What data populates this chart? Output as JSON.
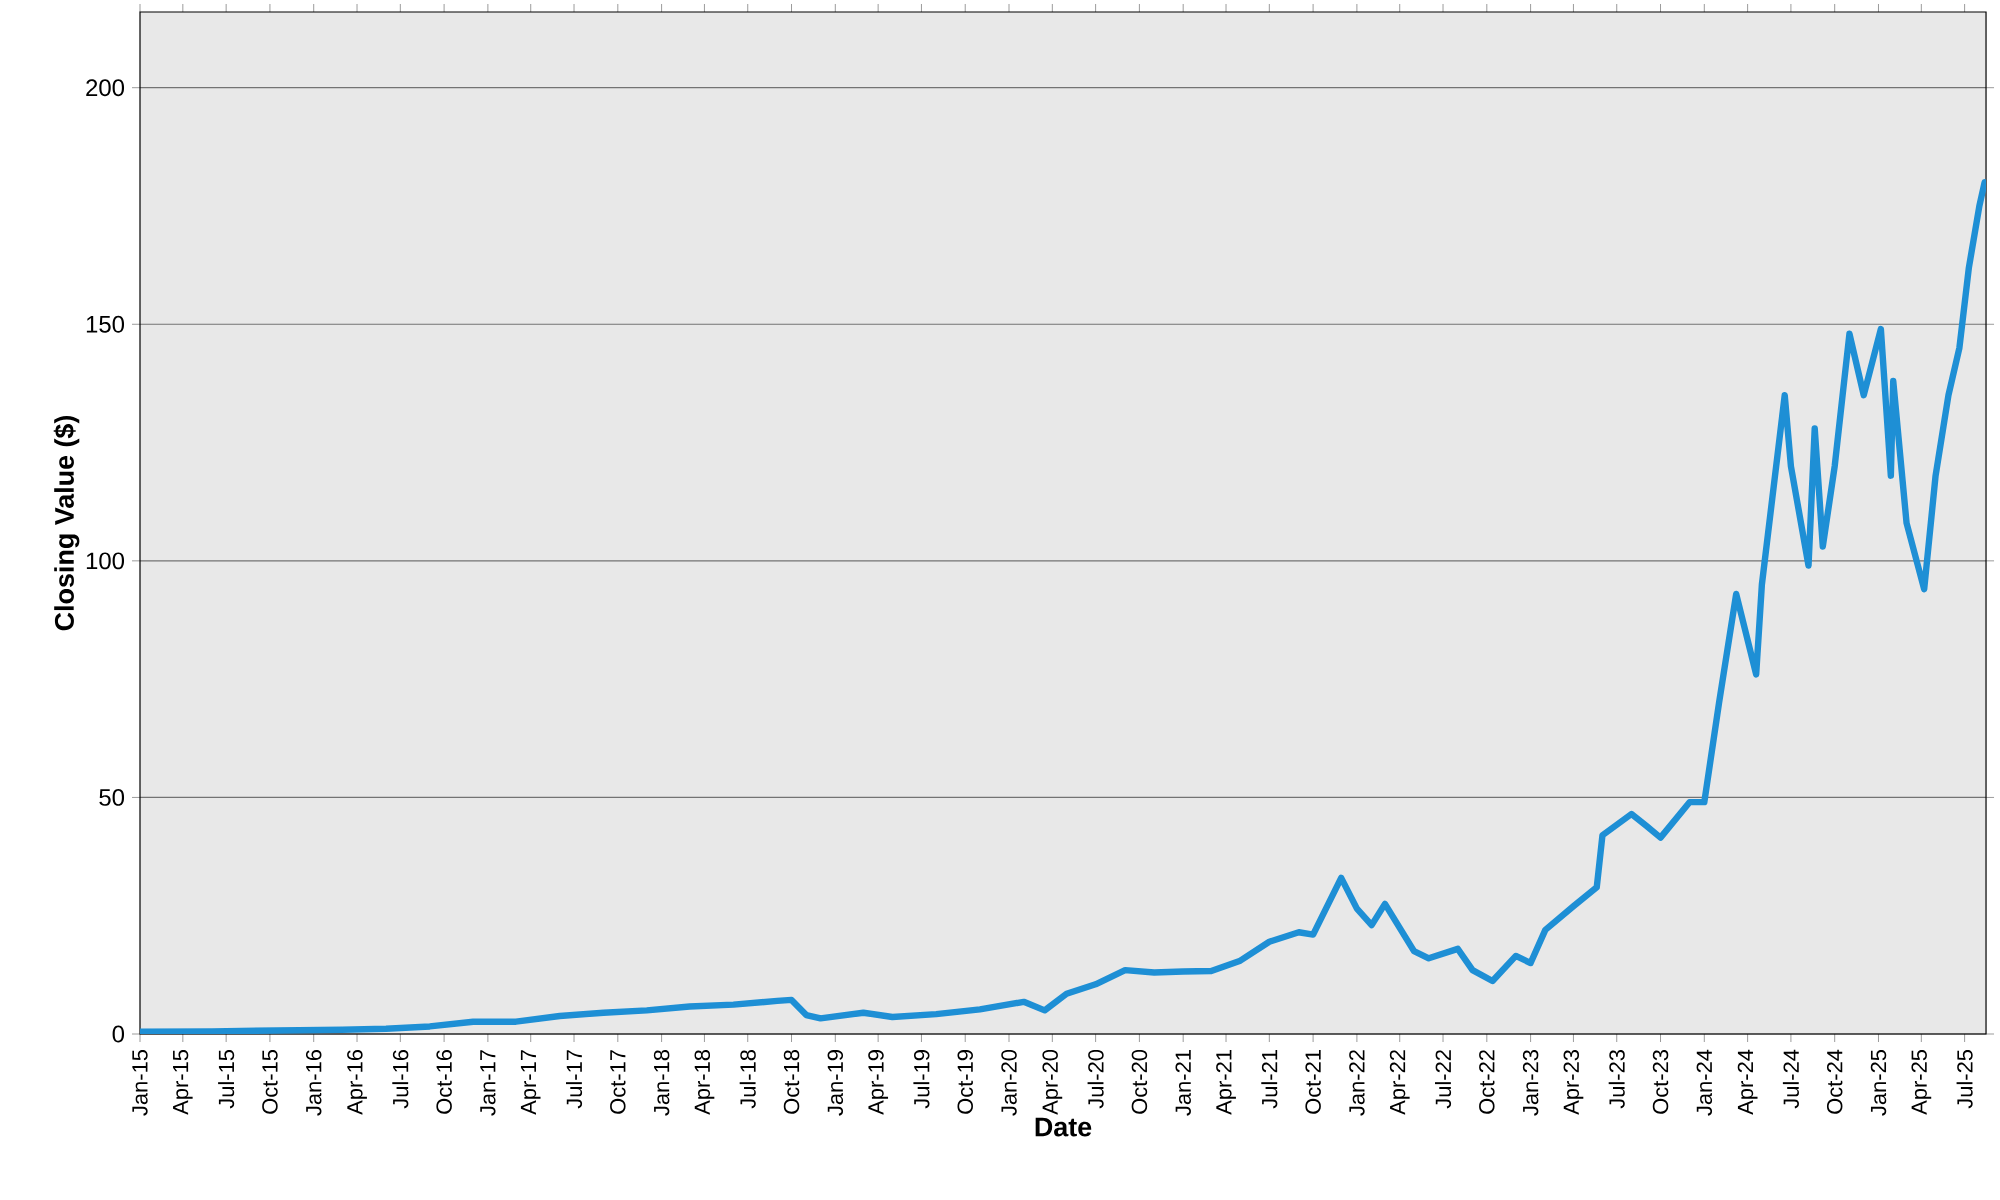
{
  "chart_data": {
    "type": "line",
    "xlabel": "Date",
    "ylabel": "Closing Value ($)",
    "x": [
      "2015-01-02",
      "2015-06-01",
      "2015-12-01",
      "2016-03-01",
      "2016-06-01",
      "2016-09-01",
      "2016-12-01",
      "2017-03-01",
      "2017-06-01",
      "2017-09-01",
      "2017-12-01",
      "2018-03-01",
      "2018-06-01",
      "2018-09-01",
      "2018-10-01",
      "2018-11-01",
      "2018-12-01",
      "2019-03-01",
      "2019-05-01",
      "2019-08-01",
      "2019-11-01",
      "2020-02-01",
      "2020-03-16",
      "2020-05-01",
      "2020-07-01",
      "2020-09-01",
      "2020-11-01",
      "2021-01-01",
      "2021-03-01",
      "2021-05-01",
      "2021-07-01",
      "2021-09-01",
      "2021-10-01",
      "2021-11-29",
      "2022-01-01",
      "2022-02-01",
      "2022-03-01",
      "2022-05-01",
      "2022-06-01",
      "2022-08-01",
      "2022-09-01",
      "2022-10-13",
      "2022-12-01",
      "2023-01-01",
      "2023-02-01",
      "2023-04-01",
      "2023-05-20",
      "2023-06-01",
      "2023-08-01",
      "2023-09-01",
      "2023-10-01",
      "2023-12-01",
      "2024-01-01",
      "2024-02-01",
      "2024-03-08",
      "2024-04-19",
      "2024-05-01",
      "2024-06-18",
      "2024-07-01",
      "2024-08-07",
      "2024-08-20",
      "2024-09-06",
      "2024-10-01",
      "2024-11-01",
      "2024-12-01",
      "2025-01-06",
      "2025-01-27",
      "2025-02-01",
      "2025-03-01",
      "2025-04-07",
      "2025-05-01",
      "2025-05-28",
      "2025-06-20",
      "2025-07-10",
      "2025-08-01",
      "2025-08-12"
    ],
    "series": [
      {
        "color": "#1e8fd5",
        "values": [
          0.5,
          0.55,
          0.8,
          0.9,
          1.1,
          1.6,
          2.6,
          2.6,
          3.8,
          4.5,
          5.0,
          5.8,
          6.2,
          7.0,
          7.2,
          4.0,
          3.3,
          4.5,
          3.6,
          4.2,
          5.2,
          6.8,
          5.0,
          8.5,
          10.5,
          13.5,
          13.0,
          13.2,
          13.3,
          15.5,
          19.5,
          21.5,
          21.0,
          33.0,
          26.5,
          23.0,
          27.5,
          17.5,
          16.0,
          18.0,
          13.5,
          11.2,
          16.5,
          15.0,
          22.0,
          27.0,
          31.0,
          42.0,
          46.5,
          44.0,
          41.5,
          49.0,
          49.0,
          70.0,
          93.0,
          76.0,
          95.0,
          135.0,
          120.0,
          99.0,
          128.0,
          103.0,
          120.0,
          148.0,
          135.0,
          149.0,
          118.0,
          138.0,
          108.0,
          94.0,
          118.0,
          135.0,
          145.0,
          162.0,
          175.0,
          180.0
        ]
      }
    ],
    "xlim": [
      "2015-01-01",
      "2025-08-15"
    ],
    "ylim": [
      0,
      216
    ],
    "yticks": [
      0,
      50,
      100,
      150,
      200
    ],
    "grid": "y",
    "line_style": "solid",
    "marker": "none",
    "xticks": [
      {
        "value": "2015-01",
        "label": "Jan-15"
      },
      {
        "value": "2015-04",
        "label": "Apr-15"
      },
      {
        "value": "2015-07",
        "label": "Jul-15"
      },
      {
        "value": "2015-10",
        "label": "Oct-15"
      },
      {
        "value": "2016-01",
        "label": "Jan-16"
      },
      {
        "value": "2016-04",
        "label": "Apr-16"
      },
      {
        "value": "2016-07",
        "label": "Jul-16"
      },
      {
        "value": "2016-10",
        "label": "Oct-16"
      },
      {
        "value": "2017-01",
        "label": "Jan-17"
      },
      {
        "value": "2017-04",
        "label": "Apr-17"
      },
      {
        "value": "2017-07",
        "label": "Jul-17"
      },
      {
        "value": "2017-10",
        "label": "Oct-17"
      },
      {
        "value": "2018-01",
        "label": "Jan-18"
      },
      {
        "value": "2018-04",
        "label": "Apr-18"
      },
      {
        "value": "2018-07",
        "label": "Jul-18"
      },
      {
        "value": "2018-10",
        "label": "Oct-18"
      },
      {
        "value": "2019-01",
        "label": "Jan-19"
      },
      {
        "value": "2019-04",
        "label": "Apr-19"
      },
      {
        "value": "2019-07",
        "label": "Jul-19"
      },
      {
        "value": "2019-10",
        "label": "Oct-19"
      },
      {
        "value": "2020-01",
        "label": "Jan-20"
      },
      {
        "value": "2020-04",
        "label": "Apr-20"
      },
      {
        "value": "2020-07",
        "label": "Jul-20"
      },
      {
        "value": "2020-10",
        "label": "Oct-20"
      },
      {
        "value": "2021-01",
        "label": "Jan-21"
      },
      {
        "value": "2021-04",
        "label": "Apr-21"
      },
      {
        "value": "2021-07",
        "label": "Jul-21"
      },
      {
        "value": "2021-10",
        "label": "Oct-21"
      },
      {
        "value": "2022-01",
        "label": "Jan-22"
      },
      {
        "value": "2022-04",
        "label": "Apr-22"
      },
      {
        "value": "2022-07",
        "label": "Jul-22"
      },
      {
        "value": "2022-10",
        "label": "Oct-22"
      },
      {
        "value": "2023-01",
        "label": "Jan-23"
      },
      {
        "value": "2023-04",
        "label": "Apr-23"
      },
      {
        "value": "2023-07",
        "label": "Jul-23"
      },
      {
        "value": "2023-10",
        "label": "Oct-23"
      },
      {
        "value": "2024-01",
        "label": "Jan-24"
      },
      {
        "value": "2024-04",
        "label": "Apr-24"
      },
      {
        "value": "2024-07",
        "label": "Jul-24"
      },
      {
        "value": "2024-10",
        "label": "Oct-24"
      },
      {
        "value": "2025-01",
        "label": "Jan-25"
      },
      {
        "value": "2025-04",
        "label": "Apr-25"
      },
      {
        "value": "2025-07",
        "label": "Jul-25"
      }
    ]
  }
}
